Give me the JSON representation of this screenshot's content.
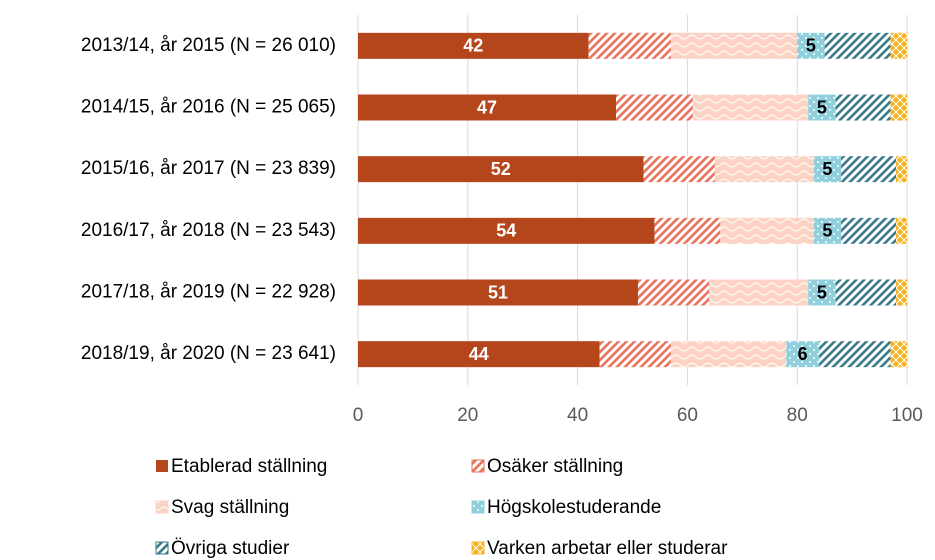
{
  "chart_data": {
    "type": "stacked_barh",
    "categories": [
      "2013/14, år 2015 (N = 26 010)",
      "2014/15, år 2016 (N = 25 065)",
      "2015/16, år 2017 (N = 23 839)",
      "2016/17, år 2018 (N = 23 543)",
      "2017/18, år 2019 (N = 22 928)",
      "2018/19, år 2020 (N = 23 641)"
    ],
    "series": [
      {
        "name": "Etablerad ställning",
        "color": "#b5451b",
        "pattern": "solid",
        "labeled": true,
        "label_color": "#ffffff",
        "values": [
          42,
          47,
          52,
          54,
          51,
          44
        ]
      },
      {
        "name": "Osäker ställning",
        "color": "#e8735a",
        "pattern": "hatch",
        "labeled": false,
        "values": [
          15,
          14,
          13,
          12,
          13,
          13
        ]
      },
      {
        "name": "Svag ställning",
        "color": "#fbd3c4",
        "pattern": "wave",
        "labeled": false,
        "values": [
          23,
          21,
          18,
          17,
          18,
          21
        ]
      },
      {
        "name": "Högskolestuderande",
        "color": "#8fd0dc",
        "pattern": "dots",
        "labeled": true,
        "label_color": "#000000",
        "values": [
          5,
          5,
          5,
          5,
          5,
          6
        ]
      },
      {
        "name": "Övriga studier",
        "color": "#3a7a8a",
        "pattern": "hatch",
        "labeled": false,
        "values": [
          12,
          10,
          10,
          10,
          11,
          13
        ]
      },
      {
        "name": "Varken arbetar eller studerar",
        "color": "#f5b324",
        "pattern": "cross",
        "labeled": false,
        "values": [
          3,
          3,
          2,
          2,
          2,
          3
        ]
      }
    ],
    "xlim": [
      0,
      100
    ],
    "xticks": [
      0,
      20,
      40,
      60,
      80,
      100
    ],
    "grid": true
  }
}
